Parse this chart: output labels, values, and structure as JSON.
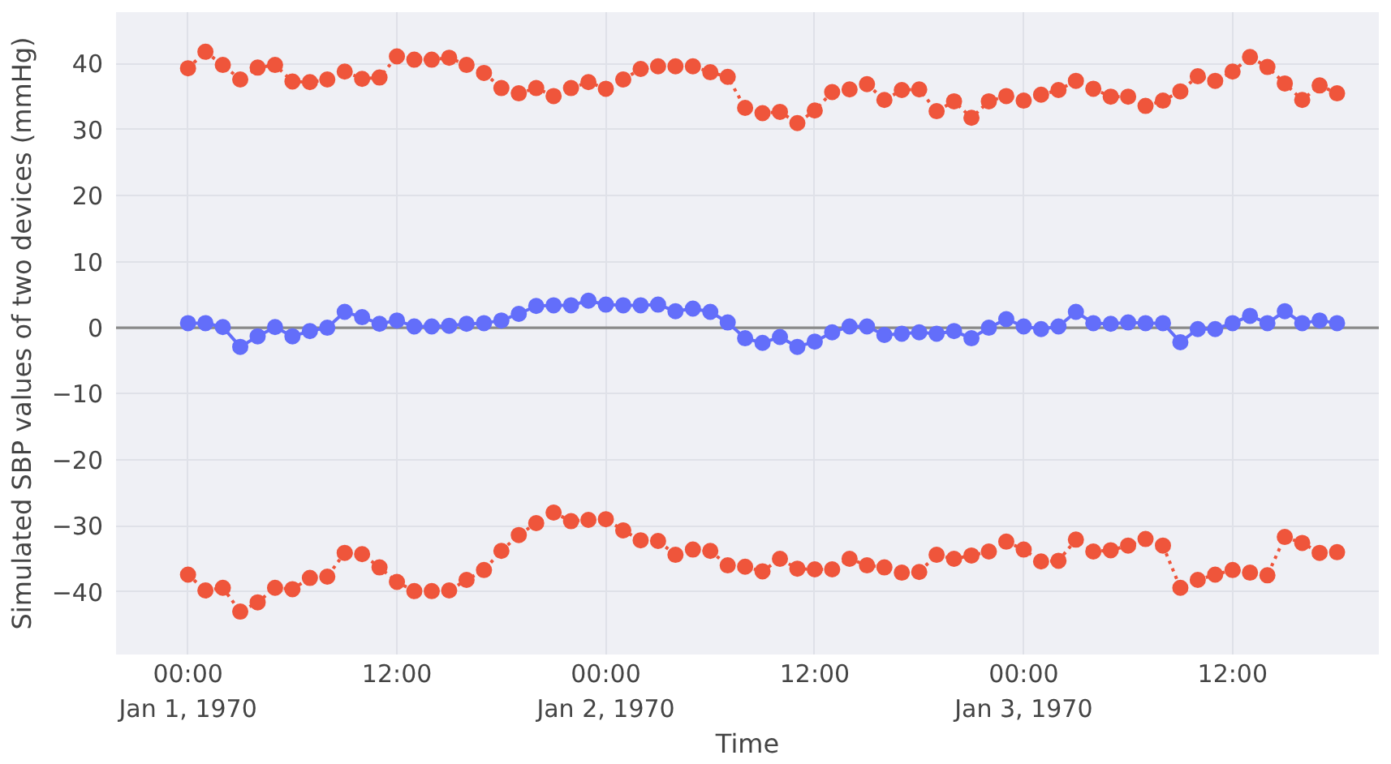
{
  "chart_data": {
    "type": "line",
    "xlabel": "Time",
    "ylabel": "Simulated SBP values of two devices (mmHg)",
    "x": [
      "1970-01-01T00:00",
      "1970-01-01T01:00",
      "1970-01-01T02:00",
      "1970-01-01T03:00",
      "1970-01-01T04:00",
      "1970-01-01T05:00",
      "1970-01-01T06:00",
      "1970-01-01T07:00",
      "1970-01-01T08:00",
      "1970-01-01T09:00",
      "1970-01-01T10:00",
      "1970-01-01T11:00",
      "1970-01-01T12:00",
      "1970-01-01T13:00",
      "1970-01-01T14:00",
      "1970-01-01T15:00",
      "1970-01-01T16:00",
      "1970-01-01T17:00",
      "1970-01-01T18:00",
      "1970-01-01T19:00",
      "1970-01-01T20:00",
      "1970-01-01T21:00",
      "1970-01-01T22:00",
      "1970-01-01T23:00",
      "1970-01-02T00:00",
      "1970-01-02T01:00",
      "1970-01-02T02:00",
      "1970-01-02T03:00",
      "1970-01-02T04:00",
      "1970-01-02T05:00",
      "1970-01-02T06:00",
      "1970-01-02T07:00",
      "1970-01-02T08:00",
      "1970-01-02T09:00",
      "1970-01-02T10:00",
      "1970-01-02T11:00",
      "1970-01-02T12:00",
      "1970-01-02T13:00",
      "1970-01-02T14:00",
      "1970-01-02T15:00",
      "1970-01-02T16:00",
      "1970-01-02T17:00",
      "1970-01-02T18:00",
      "1970-01-02T19:00",
      "1970-01-02T20:00",
      "1970-01-02T21:00",
      "1970-01-02T22:00",
      "1970-01-02T23:00",
      "1970-01-03T00:00",
      "1970-01-03T01:00",
      "1970-01-03T02:00",
      "1970-01-03T03:00",
      "1970-01-03T04:00",
      "1970-01-03T05:00",
      "1970-01-03T06:00",
      "1970-01-03T07:00",
      "1970-01-03T08:00",
      "1970-01-03T09:00",
      "1970-01-03T10:00",
      "1970-01-03T11:00",
      "1970-01-03T12:00",
      "1970-01-03T13:00",
      "1970-01-03T14:00",
      "1970-01-03T15:00",
      "1970-01-03T16:00",
      "1970-01-03T17:00",
      "1970-01-03T18:00"
    ],
    "series": [
      {
        "color": "#636efa",
        "line_style": "solid",
        "values": [
          0.7,
          0.7,
          0.1,
          -2.9,
          -1.3,
          0.1,
          -1.3,
          -0.5,
          0.0,
          2.4,
          1.6,
          0.6,
          1.1,
          0.2,
          0.2,
          0.3,
          0.6,
          0.7,
          1.1,
          2.1,
          3.3,
          3.4,
          3.4,
          4.1,
          3.5,
          3.4,
          3.4,
          3.5,
          2.5,
          2.9,
          2.4,
          0.8,
          -1.6,
          -2.3,
          -1.4,
          -2.9,
          -2.1,
          -0.7,
          0.2,
          0.2,
          -1.1,
          -0.9,
          -0.7,
          -0.9,
          -0.5,
          -1.6,
          0.0,
          1.3,
          0.2,
          -0.2,
          0.2,
          2.4,
          0.7,
          0.6,
          0.8,
          0.7,
          0.7,
          -2.2,
          -0.2,
          -0.2,
          0.7,
          1.8,
          0.7,
          2.5,
          0.7,
          1.1,
          0.7
        ]
      },
      {
        "color": "#ef553b",
        "line_style": "dotted",
        "values": [
          39.3,
          41.8,
          39.8,
          37.6,
          39.4,
          39.8,
          37.3,
          37.2,
          37.6,
          38.8,
          37.7,
          37.9,
          41.1,
          40.6,
          40.6,
          40.9,
          39.8,
          38.6,
          36.3,
          35.5,
          36.3,
          35.1,
          36.3,
          37.2,
          36.2,
          37.6,
          39.2,
          39.6,
          39.6,
          39.6,
          38.7,
          38.0,
          33.3,
          32.5,
          32.7,
          31.0,
          32.9,
          35.7,
          36.1,
          36.9,
          34.5,
          36.0,
          36.1,
          32.8,
          34.3,
          31.8,
          34.3,
          35.1,
          34.4,
          35.3,
          36.0,
          37.4,
          36.2,
          35.0,
          35.0,
          33.6,
          34.4,
          35.8,
          38.1,
          37.4,
          38.8,
          41.0,
          39.5,
          37.0,
          34.5,
          36.7,
          35.5
        ]
      },
      {
        "color": "#ef553b",
        "line_style": "dotted",
        "values": [
          -37.4,
          -39.8,
          -39.4,
          -43.0,
          -41.6,
          -39.4,
          -39.6,
          -37.9,
          -37.7,
          -34.1,
          -34.3,
          -36.3,
          -38.5,
          -39.9,
          -39.9,
          -39.8,
          -38.2,
          -36.7,
          -33.8,
          -31.4,
          -29.6,
          -28.0,
          -29.3,
          -29.1,
          -29.0,
          -30.7,
          -32.2,
          -32.3,
          -34.4,
          -33.6,
          -33.8,
          -36.0,
          -36.2,
          -36.9,
          -35.0,
          -36.5,
          -36.6,
          -36.6,
          -35.0,
          -36.0,
          -36.3,
          -37.1,
          -37.0,
          -34.4,
          -35.0,
          -34.5,
          -33.9,
          -32.4,
          -33.6,
          -35.4,
          -35.3,
          -32.1,
          -33.9,
          -33.7,
          -33.0,
          -32.0,
          -33.0,
          -39.4,
          -38.2,
          -37.4,
          -36.7,
          -37.1,
          -37.5,
          -31.7,
          -32.6,
          -34.1,
          -34.0
        ]
      }
    ],
    "xlim": [
      "1969-12-31T19:52",
      "1970-01-03T20:24"
    ],
    "xticks": [
      {
        "value": "1970-01-01T00:00",
        "label": "00:00\nJan 1, 1970"
      },
      {
        "value": "1970-01-01T12:00",
        "label": "12:00"
      },
      {
        "value": "1970-01-02T00:00",
        "label": "00:00\nJan 2, 1970"
      },
      {
        "value": "1970-01-02T12:00",
        "label": "12:00"
      },
      {
        "value": "1970-01-03T00:00",
        "label": "00:00\nJan 3, 1970"
      },
      {
        "value": "1970-01-03T12:00",
        "label": "12:00"
      }
    ],
    "ylim": [
      -49.5,
      47.8
    ],
    "yticks": [
      {
        "value": -40,
        "label": "−40"
      },
      {
        "value": -30,
        "label": "−30"
      },
      {
        "value": -20,
        "label": "−20"
      },
      {
        "value": -10,
        "label": "−10"
      },
      0,
      10,
      20,
      30,
      40
    ],
    "ref_lines": [
      {
        "axis": "y",
        "value": 0,
        "color": "#8a8a8a"
      }
    ],
    "grid": true,
    "marker": "circle"
  }
}
